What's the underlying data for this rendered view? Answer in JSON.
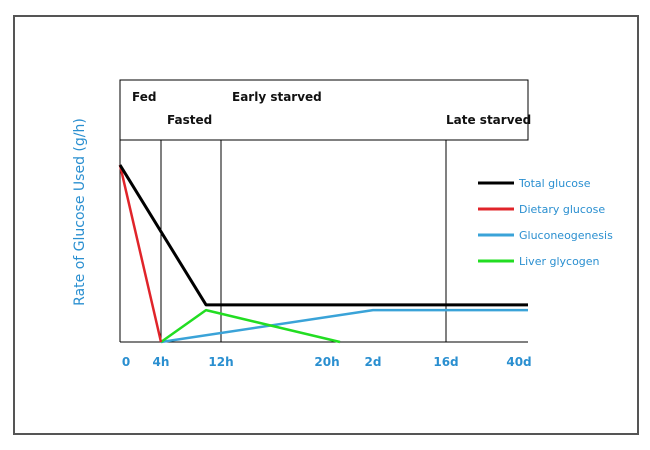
{
  "chart_data": {
    "type": "line",
    "title": "",
    "xlabel": "",
    "ylabel": "Rate of Glucose Used (g/h)",
    "x_ticks": [
      "0",
      "4h",
      "12h",
      "20h",
      "2d",
      "16d",
      "40d"
    ],
    "phases": [
      {
        "label": "Fed",
        "starts_at": "0"
      },
      {
        "label": "Fasted",
        "starts_at": "4h"
      },
      {
        "label": "Early starved",
        "starts_at": "12h"
      },
      {
        "label": "Late starved",
        "starts_at": "16d"
      }
    ],
    "ylim": [
      0,
      100
    ],
    "grid": false,
    "legend_position": "right",
    "series": [
      {
        "name": "Total glucose",
        "color": "#000000",
        "points": [
          {
            "x": "0",
            "y": 100
          },
          {
            "x": "12h",
            "y": 21
          },
          {
            "x": "40d",
            "y": 21
          }
        ]
      },
      {
        "name": "Dietary glucose",
        "color": "#e0242a",
        "points": [
          {
            "x": "0",
            "y": 100
          },
          {
            "x": "4h",
            "y": 0
          }
        ]
      },
      {
        "name": "Gluconeogenesis",
        "color": "#3aa3d8",
        "points": [
          {
            "x": "4h",
            "y": 0
          },
          {
            "x": "2d",
            "y": 18
          },
          {
            "x": "40d",
            "y": 18
          }
        ]
      },
      {
        "name": "Liver glycogen",
        "color": "#22dd22",
        "points": [
          {
            "x": "4h",
            "y": 0
          },
          {
            "x": "12h",
            "y": 18
          },
          {
            "x": "20h",
            "y": 0
          }
        ]
      }
    ]
  }
}
